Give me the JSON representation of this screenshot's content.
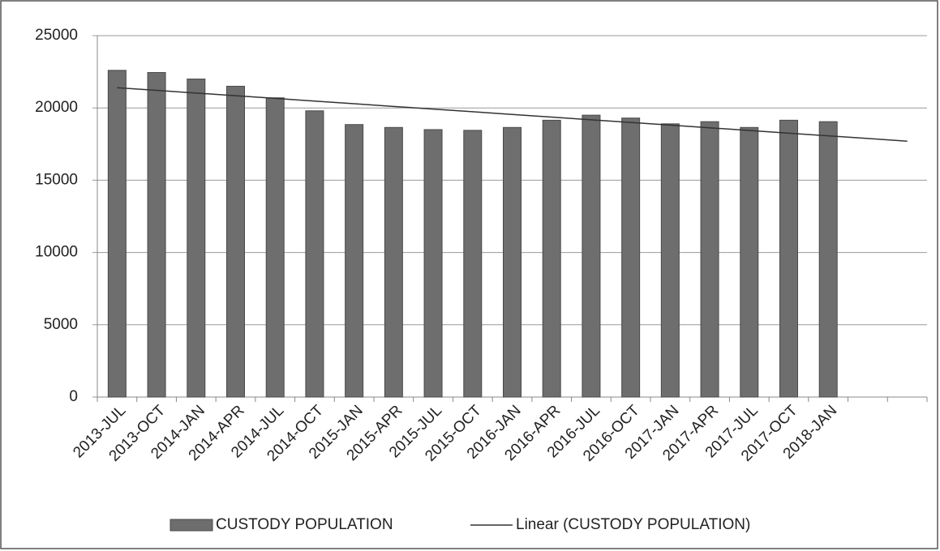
{
  "chart_data": {
    "type": "bar",
    "categories": [
      "2013-JUL",
      "2013-OCT",
      "2014-JAN",
      "2014-APR",
      "2014-JUL",
      "2014-OCT",
      "2015-JAN",
      "2015-APR",
      "2015-JUL",
      "2015-OCT",
      "2016-JAN",
      "2016-APR",
      "2016-JUL",
      "2016-OCT",
      "2017-JAN",
      "2017-APR",
      "2017-JUL",
      "2017-OCT",
      "2018-JAN",
      null,
      null
    ],
    "series": [
      {
        "name": "CUSTODY POPULATION",
        "type": "bar",
        "color": "#6e6e6e",
        "values": [
          22600,
          22450,
          22000,
          21500,
          20700,
          19800,
          18850,
          18650,
          18500,
          18450,
          18650,
          19150,
          19500,
          19300,
          18900,
          19050,
          18650,
          19150,
          19050,
          null,
          null
        ]
      },
      {
        "name": "Linear (CUSTODY POPULATION)",
        "type": "line",
        "color": "#333333",
        "values": [
          21400,
          21215,
          21030,
          20845,
          20660,
          20475,
          20290,
          20105,
          19920,
          19735,
          19550,
          19365,
          19180,
          18995,
          18810,
          18625,
          18440,
          18255,
          18070,
          17885,
          17700
        ]
      }
    ],
    "ylim": [
      0,
      25000
    ],
    "yticks": [
      0,
      5000,
      10000,
      15000,
      20000,
      25000
    ],
    "grid": true
  }
}
